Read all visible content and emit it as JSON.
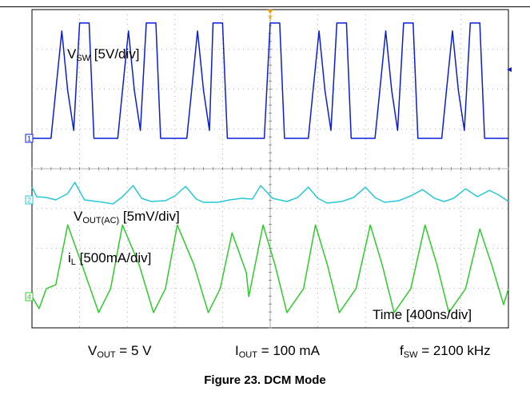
{
  "chart_data": {
    "type": "line",
    "title": "",
    "xlabel": "Time [400ns/div]",
    "time_per_div_ns": 400,
    "x_unit": "ns",
    "x_range_ns": [
      0,
      4000
    ],
    "grid": true,
    "series": [
      {
        "name": "VSW [5V/div]",
        "scale": "5V/div",
        "channel": "1",
        "color": "#0a1ed8",
        "x_ns": [
          0,
          80,
          120,
          160,
          200,
          250,
          300,
          350,
          400,
          480,
          520,
          600,
          640,
          720,
          760,
          810,
          860,
          910,
          960,
          1040,
          1080,
          1160,
          1200,
          1300,
          1340,
          1390,
          1440,
          1490,
          1520,
          1600,
          1640,
          1760,
          1800,
          1850,
          1900,
          1950,
          2000,
          2080,
          2120,
          2200,
          2240,
          2320,
          2360,
          2410,
          2460,
          2510,
          2560,
          2640,
          2680,
          2760,
          2800,
          2880,
          2920,
          2970,
          3020,
          3070,
          3120,
          3200,
          3240,
          3320,
          3360,
          3440,
          3480,
          3530,
          3580,
          3630,
          3680,
          3760,
          3800,
          3880,
          3920,
          4000
        ],
        "volts": [
          0,
          0,
          0,
          0,
          6,
          13.5,
          6,
          1,
          14.5,
          14.5,
          0,
          0,
          0,
          0,
          6,
          13.5,
          6,
          1,
          14.5,
          14.5,
          0,
          0,
          0,
          0,
          6,
          13.5,
          6,
          1,
          14.5,
          14.5,
          0,
          0,
          0,
          0,
          0,
          0,
          14.5,
          14.5,
          0,
          0,
          0,
          0,
          6,
          13.5,
          6,
          1,
          14.5,
          14.5,
          0,
          0,
          0,
          0,
          6,
          13.5,
          6,
          1,
          14.5,
          14.5,
          0,
          0,
          0,
          0,
          6,
          13.5,
          6,
          1,
          14.5,
          14.5,
          0,
          0,
          0,
          0
        ]
      },
      {
        "name": "VOUT(AC) [5mV/div]",
        "scale": "5mV/div",
        "channel": "2",
        "color": "#27c9d4",
        "x_ns": [
          0,
          40,
          120,
          200,
          300,
          360,
          440,
          600,
          680,
          760,
          850,
          920,
          1000,
          1120,
          1200,
          1290,
          1380,
          1440,
          1560,
          1660,
          1760,
          1850,
          1920,
          2020,
          2140,
          2230,
          2320,
          2400,
          2480,
          2600,
          2700,
          2800,
          2880,
          2960,
          3080,
          3180,
          3280,
          3380,
          3460,
          3540,
          3640,
          3740,
          3840,
          3920,
          4000
        ],
        "millivolts": [
          1.6,
          0.4,
          0.3,
          0,
          0.8,
          2.2,
          0,
          -0.3,
          -0.5,
          0.4,
          1.8,
          0.2,
          -0.2,
          -0.1,
          0.5,
          1.7,
          0.1,
          -0.3,
          -0.3,
          0,
          0.2,
          0.1,
          1.8,
          0.2,
          -0.2,
          0.3,
          1.6,
          0.2,
          -0.4,
          -0.2,
          0.3,
          1.6,
          0.3,
          -0.3,
          -0.1,
          0.5,
          1.3,
          0.2,
          -0.2,
          0.2,
          1.4,
          0.4,
          1.2,
          0.6,
          -0.2
        ]
      },
      {
        "name": "iL [500mA/div]",
        "scale": "500mA/div",
        "channel": "4",
        "color": "#2ecc2a",
        "x_ns": [
          0,
          60,
          120,
          200,
          300,
          420,
          560,
          660,
          760,
          900,
          1020,
          1120,
          1220,
          1360,
          1480,
          1580,
          1680,
          1800,
          1820,
          1940,
          2040,
          2140,
          2280,
          2380,
          2480,
          2580,
          2720,
          2840,
          2940,
          3040,
          3180,
          3300,
          3400,
          3500,
          3640,
          3760,
          3860,
          3960,
          4000
        ],
        "amps": [
          0,
          -0.15,
          0.1,
          0.15,
          0.9,
          0.4,
          -0.2,
          0.1,
          0.9,
          0.4,
          -0.2,
          0.1,
          0.9,
          0.4,
          -0.2,
          0.1,
          0.8,
          0.3,
          0,
          0.9,
          0.4,
          -0.2,
          0.1,
          0.9,
          0.4,
          -0.2,
          0.1,
          0.9,
          0.4,
          -0.2,
          0.1,
          0.9,
          0.4,
          -0.2,
          0.1,
          0.85,
          0.4,
          -0.1,
          0.1
        ]
      }
    ],
    "params": [
      {
        "base": "V",
        "sub": "OUT",
        "rest": " = 5 V"
      },
      {
        "base": "I",
        "sub": "OUT",
        "rest": " = 100 mA"
      },
      {
        "base": "f",
        "sub": "SW",
        "rest": " = 2100 kHz"
      }
    ]
  },
  "labels": {
    "vsw_base": "V",
    "vsw_sub": "SW",
    "vsw_rest": " [5V/div]",
    "vout_base": "V",
    "vout_sub": "OUT(AC)",
    "vout_rest": " [5mV/div]",
    "il_base": "i",
    "il_sub": "L",
    "il_rest": " [500mA/div]",
    "time": "Time  [400ns/div]",
    "trigger_marker": "T"
  },
  "caption": "Figure 23. DCM Mode",
  "channel_markers": [
    "1",
    "2",
    "4"
  ]
}
